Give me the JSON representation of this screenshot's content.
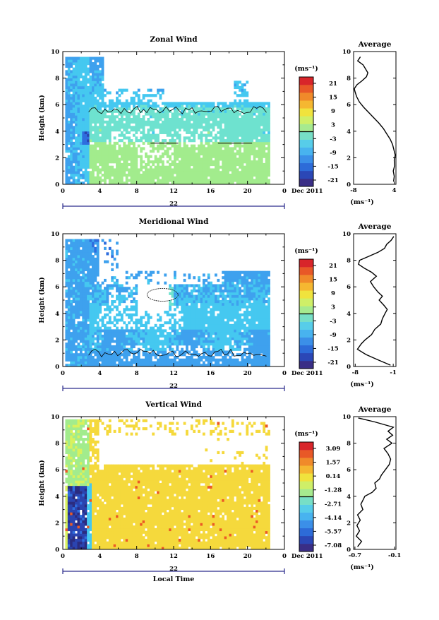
{
  "chart_data": [
    {
      "type": "heatmap",
      "title": "Zonal Wind",
      "ylabel": "Height (km)",
      "ylim": [
        0,
        10
      ],
      "yticks": [
        "0",
        "2",
        "4",
        "6",
        "8",
        "10"
      ],
      "xlim": [
        0,
        24
      ],
      "xticks": [
        "0",
        "4",
        "8",
        "12",
        "16",
        "20",
        "0"
      ],
      "date_marker": "22",
      "date_label": "Dec 2011",
      "colorbar": {
        "unit": "(ms⁻¹)",
        "ticks": [
          "21",
          "15",
          "9",
          "3",
          "-3",
          "-9",
          "-15",
          "-21"
        ]
      },
      "profile": {
        "title": "Average",
        "xlabel": "(ms⁻¹)",
        "xticks": [
          "-8",
          "4"
        ],
        "xlim": [
          -8,
          4.5
        ],
        "yticks": [
          "0",
          "2",
          "4",
          "6",
          "8",
          "10"
        ],
        "points": [
          [
            3.8,
            0.2
          ],
          [
            4.0,
            0.6
          ],
          [
            3.7,
            1.0
          ],
          [
            4.1,
            1.4
          ],
          [
            4.0,
            1.8
          ],
          [
            4.3,
            2.2
          ],
          [
            3.9,
            2.6
          ],
          [
            3.5,
            3.0
          ],
          [
            2.8,
            3.4
          ],
          [
            1.8,
            3.8
          ],
          [
            0.8,
            4.2
          ],
          [
            -0.5,
            4.6
          ],
          [
            -2.0,
            5.0
          ],
          [
            -3.5,
            5.4
          ],
          [
            -5.0,
            5.8
          ],
          [
            -6.3,
            6.2
          ],
          [
            -7.1,
            6.6
          ],
          [
            -7.6,
            7.0
          ],
          [
            -7.8,
            7.2
          ],
          [
            -7.0,
            7.5
          ],
          [
            -5.5,
            7.8
          ],
          [
            -4.2,
            8.1
          ],
          [
            -3.8,
            8.4
          ],
          [
            -4.5,
            8.7
          ],
          [
            -5.2,
            9.0
          ],
          [
            -6.8,
            9.3
          ],
          [
            -6.0,
            9.6
          ]
        ]
      }
    },
    {
      "type": "heatmap",
      "title": "Meridional Wind",
      "ylabel": "Height (km)",
      "ylim": [
        0,
        10
      ],
      "yticks": [
        "0",
        "2",
        "4",
        "6",
        "8",
        "10"
      ],
      "xlim": [
        0,
        24
      ],
      "xticks": [
        "0",
        "4",
        "8",
        "12",
        "16",
        "20",
        "0"
      ],
      "date_marker": "22",
      "date_label": "Dec 2011",
      "colorbar": {
        "unit": "(ms⁻¹)",
        "ticks": [
          "21",
          "15",
          "9",
          "3",
          "-3",
          "-9",
          "-15",
          "-21"
        ]
      },
      "profile": {
        "title": "Average",
        "xlabel": "(ms⁻¹)",
        "xticks": [
          "-8",
          "-1"
        ],
        "xlim": [
          -8.3,
          -0.5
        ],
        "yticks": [
          "0",
          "2",
          "4",
          "6",
          "8",
          "10"
        ],
        "points": [
          [
            -1.5,
            0.1
          ],
          [
            -3.8,
            0.5
          ],
          [
            -6.0,
            0.9
          ],
          [
            -7.6,
            1.3
          ],
          [
            -6.9,
            1.7
          ],
          [
            -6.2,
            2.0
          ],
          [
            -5.0,
            2.4
          ],
          [
            -4.4,
            2.8
          ],
          [
            -3.3,
            3.2
          ],
          [
            -3.0,
            3.6
          ],
          [
            -2.5,
            4.0
          ],
          [
            -2.1,
            4.3
          ],
          [
            -2.7,
            4.6
          ],
          [
            -3.6,
            5.0
          ],
          [
            -3.0,
            5.3
          ],
          [
            -3.8,
            5.6
          ],
          [
            -4.6,
            6.0
          ],
          [
            -5.2,
            6.4
          ],
          [
            -4.1,
            6.8
          ],
          [
            -5.0,
            7.1
          ],
          [
            -6.3,
            7.4
          ],
          [
            -7.4,
            7.7
          ],
          [
            -7.2,
            8.0
          ],
          [
            -5.5,
            8.3
          ],
          [
            -3.8,
            8.6
          ],
          [
            -2.6,
            8.9
          ],
          [
            -2.2,
            9.2
          ],
          [
            -1.4,
            9.5
          ],
          [
            -0.9,
            9.8
          ]
        ]
      }
    },
    {
      "type": "heatmap",
      "title": "Vertical Wind",
      "ylabel": "Height (km)",
      "xlabel": "Local Time",
      "ylim": [
        0,
        10
      ],
      "yticks": [
        "0",
        "2",
        "4",
        "6",
        "8",
        "10"
      ],
      "xlim": [
        0,
        24
      ],
      "xticks": [
        "0",
        "4",
        "8",
        "12",
        "16",
        "20",
        "0"
      ],
      "date_marker": "22",
      "date_label": "Dec 2011",
      "colorbar": {
        "unit": "(ms⁻¹)",
        "ticks": [
          "3.09",
          "1.57",
          "0.14",
          "-1.28",
          "-2.71",
          "-4.14",
          "-5.57",
          "-7.08"
        ]
      },
      "profile": {
        "title": "Average",
        "xlabel": "(ms⁻¹)",
        "xticks": [
          "-0.7",
          "-0.1"
        ],
        "xlim": [
          -0.72,
          -0.08
        ],
        "yticks": [
          "0",
          "2",
          "4",
          "6",
          "8",
          "10"
        ],
        "points": [
          [
            -0.66,
            0.2
          ],
          [
            -0.6,
            0.6
          ],
          [
            -0.68,
            1.0
          ],
          [
            -0.63,
            1.4
          ],
          [
            -0.67,
            1.8
          ],
          [
            -0.62,
            2.2
          ],
          [
            -0.66,
            2.6
          ],
          [
            -0.58,
            3.0
          ],
          [
            -0.61,
            3.4
          ],
          [
            -0.57,
            3.8
          ],
          [
            -0.55,
            4.0
          ],
          [
            -0.44,
            4.3
          ],
          [
            -0.38,
            4.6
          ],
          [
            -0.4,
            5.0
          ],
          [
            -0.33,
            5.3
          ],
          [
            -0.3,
            5.6
          ],
          [
            -0.24,
            6.0
          ],
          [
            -0.18,
            6.4
          ],
          [
            -0.16,
            6.8
          ],
          [
            -0.2,
            7.2
          ],
          [
            -0.26,
            7.6
          ],
          [
            -0.14,
            8.0
          ],
          [
            -0.22,
            8.3
          ],
          [
            -0.13,
            8.6
          ],
          [
            -0.2,
            8.9
          ],
          [
            -0.12,
            9.2
          ],
          [
            -0.4,
            9.6
          ],
          [
            -0.65,
            9.9
          ]
        ]
      }
    }
  ]
}
